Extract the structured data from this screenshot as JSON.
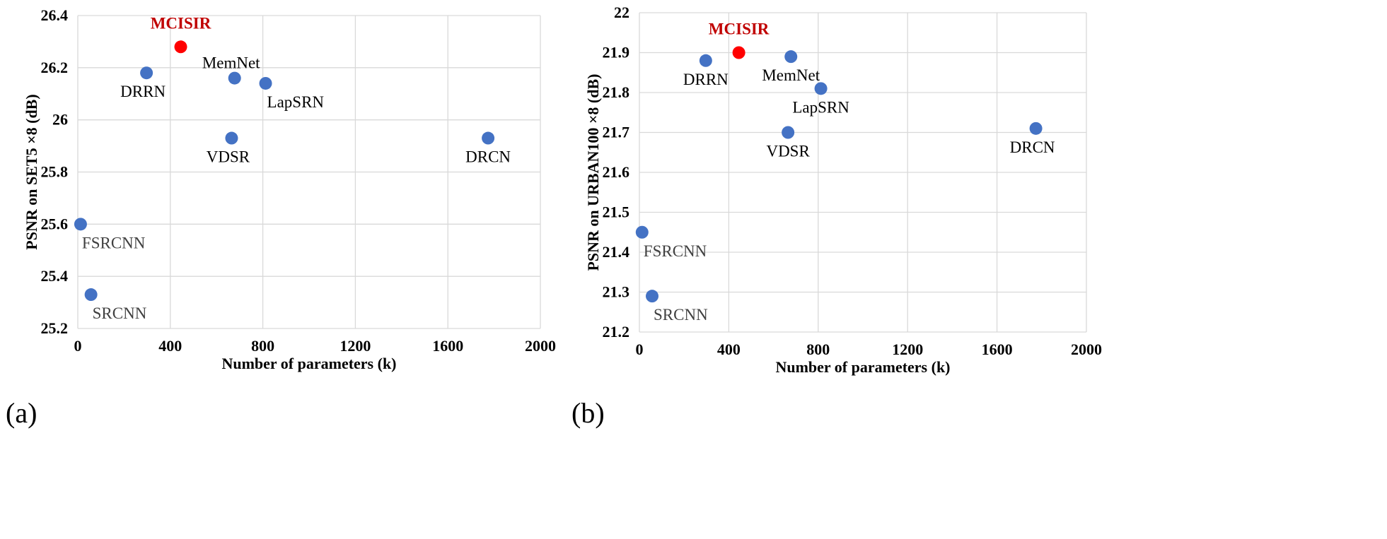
{
  "colors": {
    "point": "#4472C4",
    "highlight": "#FF0000",
    "highlight_text": "#C00000",
    "grid": "#D9D9D9",
    "label_dark": "#000000",
    "label_gray": "#404040"
  },
  "chart_data": [
    {
      "type": "scatter",
      "panel": "(a)",
      "xlabel": "Number of parameters (k)",
      "ylabel": "PSNR on SET5 ×8 (dB)",
      "xlim": [
        0,
        2000
      ],
      "ylim": [
        25.2,
        26.4
      ],
      "xticks": [
        0,
        400,
        800,
        1200,
        1600,
        2000
      ],
      "xtick_labels": [
        "0",
        "400",
        "800",
        "1200",
        "1600",
        "2000"
      ],
      "yticks": [
        25.2,
        25.4,
        25.6,
        25.8,
        26.0,
        26.2,
        26.4
      ],
      "ytick_labels": [
        "25.2",
        "25.4",
        "25.6",
        "25.8",
        "26",
        "26.2",
        "26.4"
      ],
      "grid": true,
      "points": [
        {
          "name": "MCISIR",
          "x": 445,
          "y": 26.28,
          "highlight": true,
          "label_pos": "above"
        },
        {
          "name": "DRRN",
          "x": 297,
          "y": 26.18,
          "highlight": false,
          "label_pos": "below-left"
        },
        {
          "name": "MemNet",
          "x": 678,
          "y": 26.16,
          "highlight": false,
          "label_pos": "above-left"
        },
        {
          "name": "LapSRN",
          "x": 812,
          "y": 26.14,
          "highlight": false,
          "label_pos": "below-right"
        },
        {
          "name": "VDSR",
          "x": 665,
          "y": 25.93,
          "highlight": false,
          "label_pos": "below-left"
        },
        {
          "name": "DRCN",
          "x": 1774,
          "y": 25.93,
          "highlight": false,
          "label_pos": "below"
        },
        {
          "name": "FSRCNN",
          "x": 12,
          "y": 25.6,
          "highlight": false,
          "label_pos": "below-right"
        },
        {
          "name": "SRCNN",
          "x": 57,
          "y": 25.33,
          "highlight": false,
          "label_pos": "below-right"
        }
      ]
    },
    {
      "type": "scatter",
      "panel": "(b)",
      "xlabel": "Number of parameters (k)",
      "ylabel": "PSNR on URBAN100 ×8 (dB)",
      "xlim": [
        0,
        2000
      ],
      "ylim": [
        21.2,
        22.0
      ],
      "xticks": [
        0,
        400,
        800,
        1200,
        1600,
        2000
      ],
      "xtick_labels": [
        "0",
        "400",
        "800",
        "1200",
        "1600",
        "2000"
      ],
      "yticks": [
        21.2,
        21.3,
        21.4,
        21.5,
        21.6,
        21.7,
        21.8,
        21.9,
        22.0
      ],
      "ytick_labels": [
        "21.2",
        "21.3",
        "21.4",
        "21.5",
        "21.6",
        "21.7",
        "21.8",
        "21.9",
        "22"
      ],
      "grid": true,
      "points": [
        {
          "name": "MCISIR",
          "x": 445,
          "y": 21.9,
          "highlight": true,
          "label_pos": "above"
        },
        {
          "name": "DRRN",
          "x": 297,
          "y": 21.88,
          "highlight": false,
          "label_pos": "below"
        },
        {
          "name": "MemNet",
          "x": 678,
          "y": 21.89,
          "highlight": false,
          "label_pos": "below"
        },
        {
          "name": "LapSRN",
          "x": 812,
          "y": 21.81,
          "highlight": false,
          "label_pos": "below"
        },
        {
          "name": "VDSR",
          "x": 665,
          "y": 21.7,
          "highlight": false,
          "label_pos": "below"
        },
        {
          "name": "DRCN",
          "x": 1774,
          "y": 21.71,
          "highlight": false,
          "label_pos": "below-left"
        },
        {
          "name": "FSRCNN",
          "x": 12,
          "y": 21.45,
          "highlight": false,
          "label_pos": "below-right"
        },
        {
          "name": "SRCNN",
          "x": 57,
          "y": 21.29,
          "highlight": false,
          "label_pos": "below-right"
        }
      ]
    }
  ]
}
